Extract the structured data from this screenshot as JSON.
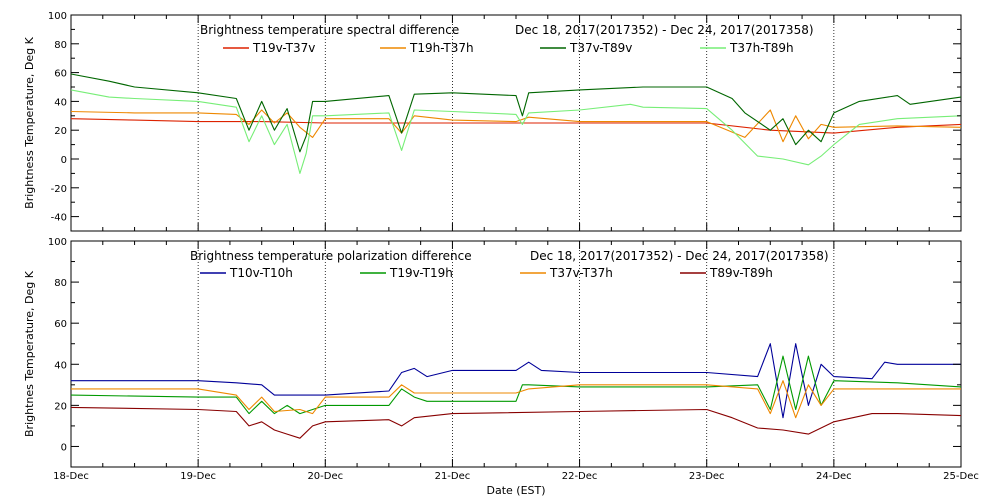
{
  "figure": {
    "xlabel": "Date (EST)"
  },
  "x_ticks": [
    "18-Dec",
    "19-Dec",
    "20-Dec",
    "21-Dec",
    "22-Dec",
    "23-Dec",
    "24-Dec",
    "25-Dec"
  ],
  "chart_data": [
    {
      "type": "line",
      "title": "Brightness temperature spectral difference",
      "date_range": "Dec 18, 2017(2017352) - Dec 24, 2017(2017358)",
      "ylabel": "Brightness Temperature, Deg K",
      "xlabel": "",
      "xlim": [
        "18-Dec",
        "25-Dec"
      ],
      "ylim": [
        -50,
        100
      ],
      "y_ticks": [
        -40,
        -20,
        0,
        20,
        40,
        60,
        80,
        100
      ],
      "grid": "vertical dotted lines at each day",
      "legend": "top, two-line row",
      "series": [
        {
          "name": "T19v-T37v",
          "color": "#dd2200",
          "x": [
            18.0,
            18.5,
            19.0,
            19.5,
            20.0,
            20.5,
            21.0,
            21.5,
            22.0,
            22.5,
            23.0,
            23.5,
            24.0,
            24.5,
            25.0
          ],
          "values": [
            28,
            27,
            26,
            26,
            25,
            25,
            25,
            25,
            25,
            25,
            25,
            20,
            18,
            22,
            24
          ]
        },
        {
          "name": "T19h-T37h",
          "color": "#ee8800",
          "x": [
            18.0,
            18.5,
            19.0,
            19.3,
            19.4,
            19.5,
            19.6,
            19.7,
            19.8,
            19.9,
            20.0,
            20.5,
            20.6,
            20.7,
            21.0,
            21.5,
            21.6,
            22.0,
            22.5,
            23.0,
            23.3,
            23.5,
            23.6,
            23.7,
            23.8,
            23.9,
            24.0,
            24.5,
            25.0
          ],
          "values": [
            33,
            32,
            32,
            31,
            24,
            34,
            25,
            32,
            22,
            15,
            28,
            28,
            18,
            30,
            27,
            26,
            29,
            26,
            26,
            26,
            15,
            34,
            12,
            30,
            14,
            24,
            22,
            23,
            22
          ]
        },
        {
          "name": "T37v-T89v",
          "color": "#006600",
          "x": [
            18.0,
            18.3,
            18.5,
            19.0,
            19.3,
            19.4,
            19.5,
            19.6,
            19.7,
            19.8,
            19.85,
            19.9,
            20.0,
            20.5,
            20.6,
            20.7,
            21.0,
            21.5,
            21.55,
            21.6,
            22.0,
            22.5,
            23.0,
            23.2,
            23.3,
            23.5,
            23.6,
            23.7,
            23.8,
            23.9,
            24.0,
            24.2,
            24.5,
            24.6,
            25.0
          ],
          "values": [
            59,
            54,
            50,
            46,
            42,
            20,
            40,
            20,
            35,
            5,
            16,
            40,
            40,
            44,
            18,
            45,
            46,
            44,
            30,
            46,
            48,
            50,
            50,
            42,
            32,
            20,
            28,
            10,
            20,
            12,
            32,
            40,
            44,
            38,
            43
          ]
        },
        {
          "name": "T37h-T89h",
          "color": "#77ee77",
          "x": [
            18.0,
            18.3,
            18.5,
            19.0,
            19.3,
            19.4,
            19.5,
            19.6,
            19.7,
            19.8,
            19.85,
            19.9,
            20.0,
            20.5,
            20.6,
            20.7,
            21.0,
            21.5,
            21.55,
            21.6,
            22.0,
            22.4,
            22.5,
            23.0,
            23.2,
            23.4,
            23.6,
            23.8,
            23.9,
            24.0,
            24.2,
            24.5,
            25.0
          ],
          "values": [
            48,
            43,
            42,
            40,
            36,
            12,
            30,
            10,
            24,
            -10,
            4,
            30,
            30,
            32,
            6,
            34,
            33,
            31,
            24,
            32,
            34,
            38,
            36,
            35,
            20,
            2,
            0,
            -4,
            2,
            10,
            24,
            28,
            30
          ]
        }
      ]
    },
    {
      "type": "line",
      "title": "Brightness temperature polarization difference",
      "date_range": "Dec 18, 2017(2017352) - Dec 24, 2017(2017358)",
      "ylabel": "Brightnes Temperature, Deg K",
      "xlabel": "Date (EST)",
      "xlim": [
        "18-Dec",
        "25-Dec"
      ],
      "ylim": [
        -10,
        100
      ],
      "y_ticks": [
        0,
        20,
        40,
        60,
        80,
        100
      ],
      "grid": "vertical dotted lines at each day",
      "legend": "top, single row",
      "series": [
        {
          "name": "T10v-T10h",
          "color": "#000099",
          "x": [
            18.0,
            19.0,
            19.3,
            19.5,
            19.6,
            19.8,
            20.0,
            20.5,
            20.6,
            20.7,
            20.8,
            21.0,
            21.5,
            21.6,
            21.7,
            22.0,
            23.0,
            23.4,
            23.5,
            23.6,
            23.7,
            23.8,
            23.9,
            24.0,
            24.3,
            24.4,
            24.5,
            25.0
          ],
          "values": [
            32,
            32,
            31,
            30,
            25,
            25,
            25,
            27,
            36,
            38,
            34,
            37,
            37,
            41,
            37,
            36,
            36,
            34,
            50,
            14,
            50,
            20,
            40,
            34,
            33,
            41,
            40,
            40
          ]
        },
        {
          "name": "T19v-T19h",
          "color": "#009900",
          "x": [
            18.0,
            19.0,
            19.3,
            19.4,
            19.5,
            19.6,
            19.7,
            19.8,
            19.9,
            20.0,
            20.5,
            20.6,
            20.7,
            20.8,
            21.0,
            21.5,
            21.55,
            21.6,
            22.0,
            23.0,
            23.4,
            23.5,
            23.6,
            23.7,
            23.8,
            23.9,
            24.0,
            24.5,
            25.0
          ],
          "values": [
            25,
            24,
            24,
            16,
            22,
            16,
            20,
            16,
            18,
            20,
            20,
            28,
            24,
            22,
            22,
            22,
            30,
            30,
            29,
            29,
            30,
            18,
            44,
            18,
            44,
            20,
            32,
            31,
            29
          ]
        },
        {
          "name": "T37v-T37h",
          "color": "#ee8800",
          "x": [
            18.0,
            19.0,
            19.3,
            19.4,
            19.5,
            19.6,
            19.8,
            19.9,
            20.0,
            20.5,
            20.6,
            20.7,
            21.0,
            21.5,
            21.6,
            22.0,
            23.0,
            23.4,
            23.5,
            23.6,
            23.7,
            23.8,
            23.9,
            24.0,
            24.5,
            25.0
          ],
          "values": [
            28,
            28,
            25,
            18,
            24,
            17,
            18,
            16,
            24,
            24,
            30,
            26,
            26,
            26,
            28,
            30,
            30,
            28,
            16,
            32,
            14,
            30,
            20,
            28,
            28,
            28
          ]
        },
        {
          "name": "T89v-T89h",
          "color": "#880000",
          "x": [
            18.0,
            19.0,
            19.3,
            19.4,
            19.5,
            19.6,
            19.7,
            19.8,
            19.9,
            20.0,
            20.5,
            20.6,
            20.7,
            21.0,
            22.0,
            23.0,
            23.2,
            23.4,
            23.6,
            23.8,
            24.0,
            24.3,
            24.5,
            25.0
          ],
          "values": [
            19,
            18,
            17,
            10,
            12,
            8,
            6,
            4,
            10,
            12,
            13,
            10,
            14,
            16,
            17,
            18,
            14,
            9,
            8,
            6,
            12,
            16,
            16,
            15
          ]
        }
      ]
    }
  ]
}
